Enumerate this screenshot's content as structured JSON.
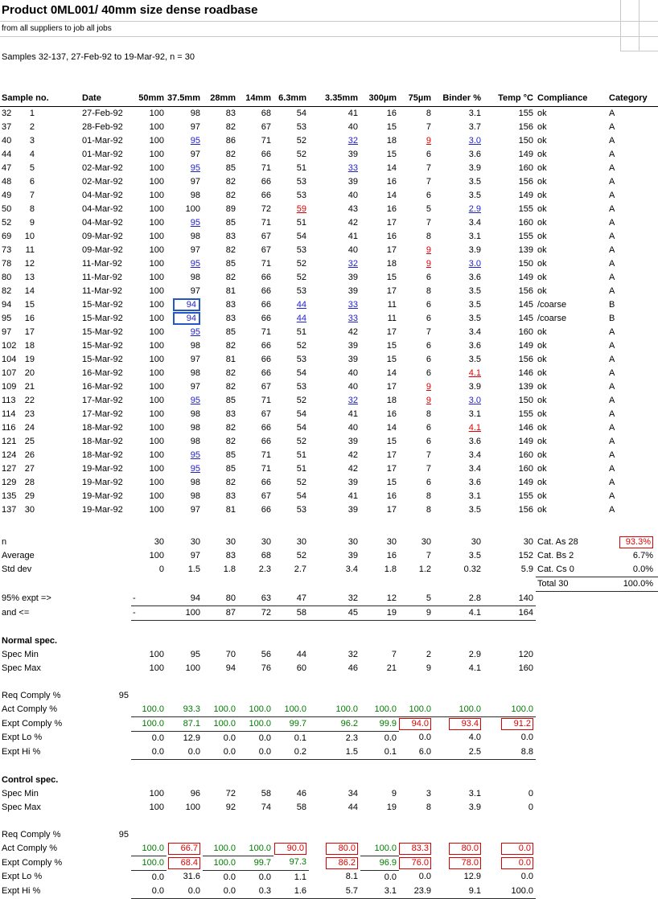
{
  "title": "Product 0ML001/ 40mm size dense roadbase",
  "subtitle": "from all suppliers to job all jobs",
  "samples_line": "Samples 32-137, 27-Feb-92 to 19-Mar-92, n = 30",
  "colors": {
    "flag_low": "#2222cc",
    "flag_high": "#dd0000",
    "comply_ok_green": "#007a00",
    "flag_box_blue": "#2457c5",
    "noncomply_box_red": "#dd0000"
  },
  "columns": [
    "Sample no.",
    "Date",
    "50mm",
    "37.5mm",
    "28mm",
    "14mm",
    "6.3mm",
    "3.35mm",
    "300µm",
    "75µm",
    "Binder %",
    "Temp °C",
    "Compliance",
    "Category"
  ],
  "samples": [
    [
      "32 1",
      "27-Feb-92",
      "100",
      "98",
      "83",
      "68",
      "54",
      "41",
      "16",
      "8",
      "3.1",
      "155",
      "ok",
      "A"
    ],
    [
      "37 2",
      "28-Feb-92",
      "100",
      "97",
      "82",
      "67",
      "53",
      "40",
      "15",
      "7",
      "3.7",
      "156",
      "ok",
      "A"
    ],
    [
      "40 3",
      "01-Mar-92",
      "100",
      [
        "95",
        "lo"
      ],
      "86",
      "71",
      "52",
      [
        "32",
        "lo"
      ],
      "18",
      [
        "9",
        "hi"
      ],
      [
        "3.0",
        "lo"
      ],
      "150",
      "ok",
      "A"
    ],
    [
      "44 4",
      "01-Mar-92",
      "100",
      "97",
      "82",
      "66",
      "52",
      "39",
      "15",
      "6",
      "3.6",
      "149",
      "ok",
      "A"
    ],
    [
      "47 5",
      "02-Mar-92",
      "100",
      [
        "95",
        "lo"
      ],
      "85",
      "71",
      "51",
      [
        "33",
        "lo"
      ],
      "14",
      "7",
      "3.9",
      "160",
      "ok",
      "A"
    ],
    [
      "48 6",
      "02-Mar-92",
      "100",
      "97",
      "82",
      "66",
      "53",
      "39",
      "16",
      "7",
      "3.5",
      "156",
      "ok",
      "A"
    ],
    [
      "49 7",
      "04-Mar-92",
      "100",
      "98",
      "82",
      "66",
      "53",
      "40",
      "14",
      "6",
      "3.5",
      "149",
      "ok",
      "A"
    ],
    [
      "50 8",
      "04-Mar-92",
      "100",
      "100",
      "89",
      "72",
      [
        "59",
        "hi"
      ],
      "43",
      "16",
      "5",
      [
        "2.9",
        "lo"
      ],
      "155",
      "ok",
      "A"
    ],
    [
      "52 9",
      "04-Mar-92",
      "100",
      [
        "95",
        "lo"
      ],
      "85",
      "71",
      "51",
      "42",
      "17",
      "7",
      "3.4",
      "160",
      "ok",
      "A"
    ],
    [
      "69 10",
      "09-Mar-92",
      "100",
      "98",
      "83",
      "67",
      "54",
      "41",
      "16",
      "8",
      "3.1",
      "155",
      "ok",
      "A"
    ],
    [
      "73 11",
      "09-Mar-92",
      "100",
      "97",
      "82",
      "67",
      "53",
      "40",
      "17",
      [
        "9",
        "hi"
      ],
      "3.9",
      "139",
      "ok",
      "A"
    ],
    [
      "78 12",
      "11-Mar-92",
      "100",
      [
        "95",
        "lo"
      ],
      "85",
      "71",
      "52",
      [
        "32",
        "lo"
      ],
      "18",
      [
        "9",
        "hi"
      ],
      [
        "3.0",
        "lo"
      ],
      "150",
      "ok",
      "A"
    ],
    [
      "80 13",
      "11-Mar-92",
      "100",
      "98",
      "82",
      "66",
      "52",
      "39",
      "15",
      "6",
      "3.6",
      "149",
      "ok",
      "A"
    ],
    [
      "82 14",
      "11-Mar-92",
      "100",
      "97",
      "81",
      "66",
      "53",
      "39",
      "17",
      "8",
      "3.5",
      "156",
      "ok",
      "A"
    ],
    [
      "94 15",
      "15-Mar-92",
      "100",
      [
        "94",
        "box"
      ],
      "83",
      "66",
      [
        "44",
        "lo"
      ],
      [
        "33",
        "lo"
      ],
      "11",
      "6",
      "3.5",
      "145",
      "/coarse",
      "B"
    ],
    [
      "95 16",
      "15-Mar-92",
      "100",
      [
        "94",
        "box"
      ],
      "83",
      "66",
      [
        "44",
        "lo"
      ],
      [
        "33",
        "lo"
      ],
      "11",
      "6",
      "3.5",
      "145",
      "/coarse",
      "B"
    ],
    [
      "97 17",
      "15-Mar-92",
      "100",
      [
        "95",
        "lo"
      ],
      "85",
      "71",
      "51",
      "42",
      "17",
      "7",
      "3.4",
      "160",
      "ok",
      "A"
    ],
    [
      "102 18",
      "15-Mar-92",
      "100",
      "98",
      "82",
      "66",
      "52",
      "39",
      "15",
      "6",
      "3.6",
      "149",
      "ok",
      "A"
    ],
    [
      "104 19",
      "15-Mar-92",
      "100",
      "97",
      "81",
      "66",
      "53",
      "39",
      "15",
      "6",
      "3.5",
      "156",
      "ok",
      "A"
    ],
    [
      "107 20",
      "16-Mar-92",
      "100",
      "98",
      "82",
      "66",
      "54",
      "40",
      "14",
      "6",
      [
        "4.1",
        "hi"
      ],
      "146",
      "ok",
      "A"
    ],
    [
      "109 21",
      "16-Mar-92",
      "100",
      "97",
      "82",
      "67",
      "53",
      "40",
      "17",
      [
        "9",
        "hi"
      ],
      "3.9",
      "139",
      "ok",
      "A"
    ],
    [
      "113 22",
      "17-Mar-92",
      "100",
      [
        "95",
        "lo"
      ],
      "85",
      "71",
      "52",
      [
        "32",
        "lo"
      ],
      "18",
      [
        "9",
        "hi"
      ],
      [
        "3.0",
        "lo"
      ],
      "150",
      "ok",
      "A"
    ],
    [
      "114 23",
      "17-Mar-92",
      "100",
      "98",
      "83",
      "67",
      "54",
      "41",
      "16",
      "8",
      "3.1",
      "155",
      "ok",
      "A"
    ],
    [
      "116 24",
      "18-Mar-92",
      "100",
      "98",
      "82",
      "66",
      "54",
      "40",
      "14",
      "6",
      [
        "4.1",
        "hi"
      ],
      "146",
      "ok",
      "A"
    ],
    [
      "121 25",
      "18-Mar-92",
      "100",
      "98",
      "82",
      "66",
      "52",
      "39",
      "15",
      "6",
      "3.6",
      "149",
      "ok",
      "A"
    ],
    [
      "124 26",
      "18-Mar-92",
      "100",
      [
        "95",
        "lo"
      ],
      "85",
      "71",
      "51",
      "42",
      "17",
      "7",
      "3.4",
      "160",
      "ok",
      "A"
    ],
    [
      "127 27",
      "19-Mar-92",
      "100",
      [
        "95",
        "lo"
      ],
      "85",
      "71",
      "51",
      "42",
      "17",
      "7",
      "3.4",
      "160",
      "ok",
      "A"
    ],
    [
      "129 28",
      "19-Mar-92",
      "100",
      "98",
      "82",
      "66",
      "52",
      "39",
      "15",
      "6",
      "3.6",
      "149",
      "ok",
      "A"
    ],
    [
      "135 29",
      "19-Mar-92",
      "100",
      "98",
      "83",
      "67",
      "54",
      "41",
      "16",
      "8",
      "3.1",
      "155",
      "ok",
      "A"
    ],
    [
      "137 30",
      "19-Mar-92",
      "100",
      "97",
      "81",
      "66",
      "53",
      "39",
      "17",
      "8",
      "3.5",
      "156",
      "ok",
      "A"
    ]
  ],
  "stats": [
    {
      "label": "n",
      "values": [
        "30",
        "30",
        "30",
        "30",
        "30",
        "30",
        "30",
        "30",
        "30",
        "30"
      ],
      "right_label": "Cat. As 28",
      "right_value": "93.3%",
      "right_mark": "rbox"
    },
    {
      "label": "Average",
      "values": [
        "100",
        "97",
        "83",
        "68",
        "52",
        "39",
        "16",
        "7",
        "3.5",
        "152"
      ],
      "right_label": "Cat. Bs 2",
      "right_value": "6.7%"
    },
    {
      "label": "Std dev",
      "values": [
        "0",
        "1.5",
        "1.8",
        "2.3",
        "2.7",
        "3.4",
        "1.8",
        "1.2",
        "0.32",
        "5.9"
      ],
      "right_label": "Cat. Cs 0",
      "right_value": "0.0%",
      "right_u": true
    },
    {
      "label": "",
      "values": [
        "",
        "",
        "",
        "",
        "",
        "",
        "",
        "",
        "",
        ""
      ],
      "right_label": "Total 30",
      "right_value": "100.0%",
      "right_u": true
    },
    {
      "label": "95% expt =>",
      "values": [
        "-",
        "94",
        "80",
        "63",
        "47",
        "32",
        "12",
        "5",
        "2.8",
        "140"
      ],
      "cell_cls": "u"
    },
    {
      "label": "and <=",
      "values": [
        "-",
        "100",
        "87",
        "72",
        "58",
        "45",
        "19",
        "9",
        "4.1",
        "164"
      ],
      "cell_cls": "u"
    }
  ],
  "normal_spec": {
    "heading": "Normal spec.",
    "rows": [
      {
        "label": "Spec Min",
        "values": [
          "100",
          "95",
          "70",
          "56",
          "44",
          "32",
          "7",
          "2",
          "2.9",
          "120"
        ]
      },
      {
        "label": "Spec Max",
        "values": [
          "100",
          "100",
          "94",
          "76",
          "60",
          "46",
          "21",
          "9",
          "4.1",
          "160"
        ]
      }
    ],
    "req_label": "Req Comply %",
    "req_value": "95",
    "comply_rows": [
      {
        "label": "Act Comply %",
        "cell_cls": "u",
        "values": [
          [
            "100.0",
            "g"
          ],
          [
            "93.3",
            "g"
          ],
          [
            "100.0",
            "g"
          ],
          [
            "100.0",
            "g"
          ],
          [
            "100.0",
            "g"
          ],
          [
            "100.0",
            "g"
          ],
          [
            "100.0",
            "g"
          ],
          [
            "100.0",
            "g"
          ],
          [
            "100.0",
            "g"
          ],
          [
            "100.0",
            "g"
          ]
        ]
      },
      {
        "label": "Expt Comply %",
        "cell_cls": "u",
        "values": [
          [
            "100.0",
            "g"
          ],
          [
            "87.1",
            "g"
          ],
          [
            "100.0",
            "g"
          ],
          [
            "100.0",
            "g"
          ],
          [
            "99.7",
            "g"
          ],
          [
            "96.2",
            "g"
          ],
          [
            "99.9",
            "g"
          ],
          [
            "94.0",
            "rbox"
          ],
          [
            "93.4",
            "rbox"
          ],
          [
            "91.2",
            "rbox"
          ]
        ]
      },
      {
        "label": "Expt Lo %",
        "values": [
          "0.0",
          "12.9",
          "0.0",
          "0.0",
          "0.1",
          "2.3",
          "0.0",
          "0.0",
          "4.0",
          "0.0"
        ]
      },
      {
        "label": "Expt Hi %",
        "cell_cls": "u",
        "values": [
          "0.0",
          "0.0",
          "0.0",
          "0.0",
          "0.2",
          "1.5",
          "0.1",
          "6.0",
          "2.5",
          "8.8"
        ]
      }
    ]
  },
  "control_spec": {
    "heading": "Control spec.",
    "rows": [
      {
        "label": "Spec Min",
        "values": [
          "100",
          "96",
          "72",
          "58",
          "46",
          "34",
          "9",
          "3",
          "3.1",
          "0"
        ]
      },
      {
        "label": "Spec Max",
        "values": [
          "100",
          "100",
          "92",
          "74",
          "58",
          "44",
          "19",
          "8",
          "3.9",
          "0"
        ]
      }
    ],
    "req_label": "Req Comply %",
    "req_value": "95",
    "comply_rows": [
      {
        "label": "Act Comply %",
        "cell_cls": "u",
        "values": [
          [
            "100.0",
            "g"
          ],
          [
            "66.7",
            "rbox"
          ],
          [
            "100.0",
            "g"
          ],
          [
            "100.0",
            "g"
          ],
          [
            "90.0",
            "rbox"
          ],
          [
            "80.0",
            "rbox"
          ],
          [
            "100.0",
            "g"
          ],
          [
            "83.3",
            "rbox"
          ],
          [
            "80.0",
            "rbox"
          ],
          [
            "0.0",
            "rbox"
          ]
        ]
      },
      {
        "label": "Expt Comply %",
        "cell_cls": "u",
        "values": [
          [
            "100.0",
            "g"
          ],
          [
            "68.4",
            "rbox"
          ],
          [
            "100.0",
            "g"
          ],
          [
            "99.7",
            "g"
          ],
          [
            "97.3",
            "g"
          ],
          [
            "86.2",
            "rbox"
          ],
          [
            "96.9",
            "g"
          ],
          [
            "76.0",
            "rbox"
          ],
          [
            "78.0",
            "rbox"
          ],
          [
            "0.0",
            "rbox"
          ]
        ]
      },
      {
        "label": "Expt Lo %",
        "values": [
          "0.0",
          "31.6",
          "0.0",
          "0.0",
          "1.1",
          "8.1",
          "0.0",
          "0.0",
          "12.9",
          "0.0"
        ]
      },
      {
        "label": "Expt Hi %",
        "cell_cls": "u",
        "values": [
          "0.0",
          "0.0",
          "0.0",
          "0.3",
          "1.6",
          "5.7",
          "3.1",
          "23.9",
          "9.1",
          "100.0"
        ]
      }
    ]
  }
}
